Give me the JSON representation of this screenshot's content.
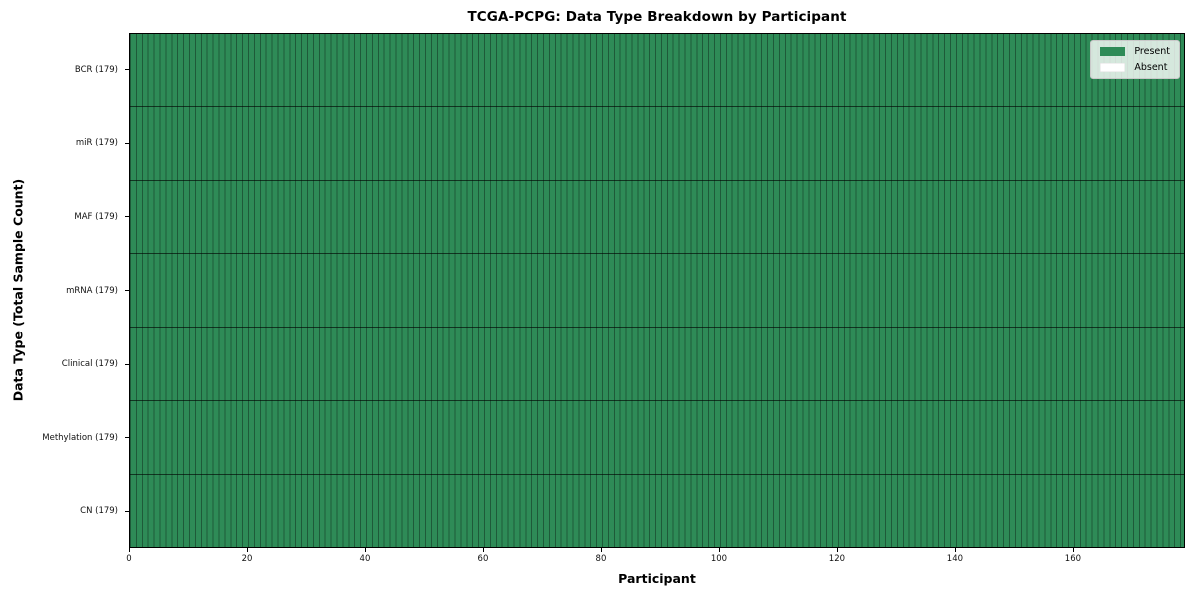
{
  "chart_data": {
    "type": "heatmap",
    "title": "TCGA-PCPG: Data Type Breakdown by Participant",
    "xlabel": "Participant",
    "ylabel": "Data Type (Total Sample Count)",
    "x_axis": {
      "label": "Participant",
      "min": 0,
      "max": 179,
      "ticks": [
        0,
        20,
        40,
        60,
        80,
        100,
        120,
        140,
        160
      ],
      "n_participants": 179
    },
    "y_axis": {
      "label": "Data Type (Total Sample Count)",
      "categories_top_to_bottom": [
        "BCR (179)",
        "miR (179)",
        "MAF (179)",
        "mRNA (179)",
        "Clinical (179)",
        "Methylation (179)",
        "CN (179)"
      ]
    },
    "rows": [
      {
        "name": "BCR",
        "label": "BCR (179)",
        "total_samples": 179,
        "present_count": 179,
        "absent_count": 0,
        "values_summary": "present for all 179 participants"
      },
      {
        "name": "miR",
        "label": "miR (179)",
        "total_samples": 179,
        "present_count": 179,
        "absent_count": 0,
        "values_summary": "present for all 179 participants"
      },
      {
        "name": "MAF",
        "label": "MAF (179)",
        "total_samples": 179,
        "present_count": 179,
        "absent_count": 0,
        "values_summary": "present for all 179 participants"
      },
      {
        "name": "mRNA",
        "label": "mRNA (179)",
        "total_samples": 179,
        "present_count": 179,
        "absent_count": 0,
        "values_summary": "present for all 179 participants"
      },
      {
        "name": "Clinical",
        "label": "Clinical (179)",
        "total_samples": 179,
        "present_count": 179,
        "absent_count": 0,
        "values_summary": "present for all 179 participants"
      },
      {
        "name": "Methylation",
        "label": "Methylation (179)",
        "total_samples": 179,
        "present_count": 179,
        "absent_count": 0,
        "values_summary": "present for all 179 participants"
      },
      {
        "name": "CN",
        "label": "CN (179)",
        "total_samples": 179,
        "present_count": 179,
        "absent_count": 0,
        "values_summary": "present for all 179 participants"
      }
    ],
    "legend": {
      "position": "upper right",
      "items": [
        {
          "label": "Present",
          "color": "#2e8b57"
        },
        {
          "label": "Absent",
          "color": "#ffffff"
        }
      ]
    },
    "colors": {
      "present": "#2e8b57",
      "absent": "#ffffff",
      "cell_edge": "rgba(0,0,0,0.35)",
      "row_separator": "rgba(0,0,0,0.62)"
    },
    "grid": "vertical lines at every participant boundary; horizontal lines between data-type rows",
    "layout": {
      "legend_on": true,
      "background": "#ffffff"
    }
  }
}
